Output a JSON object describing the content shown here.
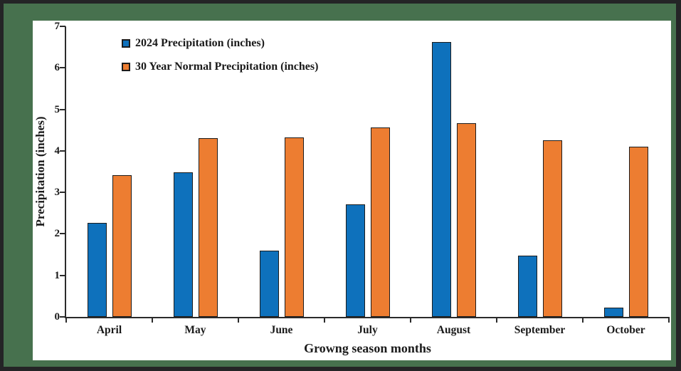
{
  "chart_data": {
    "type": "bar",
    "title": "",
    "categories": [
      "April",
      "May",
      "June",
      "July",
      "August",
      "September",
      "October"
    ],
    "series": [
      {
        "key": "2024",
        "name": "2024 Precipitation (inches)",
        "color": "#0E71BC",
        "values": [
          2.27,
          3.48,
          1.59,
          2.72,
          6.62,
          1.47,
          0.22
        ]
      },
      {
        "key": "normal",
        "name": "30 Year Normal Precipitation (inches)",
        "color": "#ED7D31",
        "values": [
          3.41,
          4.3,
          4.32,
          4.57,
          4.67,
          4.25,
          4.1
        ]
      }
    ],
    "xlabel": "Growng season months",
    "ylabel": "Precipitation (inches)",
    "ylim": [
      0,
      7
    ],
    "ytick_step": 1,
    "yticks": [
      "0",
      "1",
      "2",
      "3",
      "4",
      "5",
      "6",
      "7"
    ],
    "grid": false,
    "legend_position": "top-left-inside"
  },
  "colors": {
    "outer_border": "#242426",
    "mat_green": "#47714E",
    "panel_background": "#FFFFFF",
    "axis": "#2B2B2B",
    "bar_border": "#1C1C1C",
    "text": "#1A1A1A"
  }
}
